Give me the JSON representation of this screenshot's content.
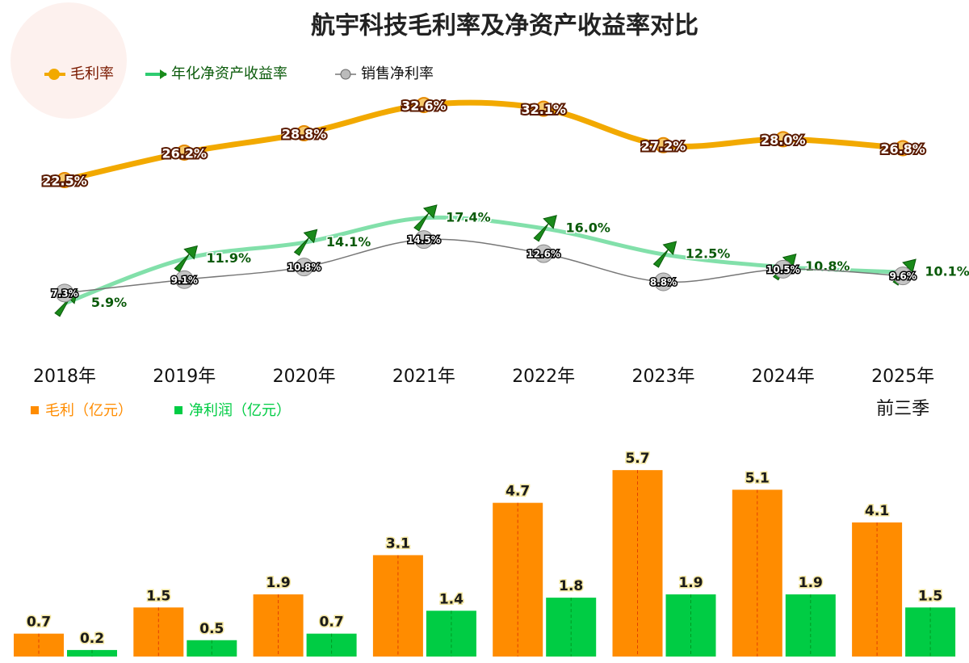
{
  "chart_data": [
    {
      "type": "line",
      "title": "航宇科技毛利率及净资产收益率对比",
      "categories": [
        "2018年",
        "2019年",
        "2020年",
        "2021年",
        "2022年",
        "2023年",
        "2024年",
        "2025年\n前三季"
      ],
      "series": [
        {
          "name": "毛利率",
          "color": "#f2a900",
          "marker": "circle",
          "values": [
            22.5,
            26.2,
            28.8,
            32.6,
            32.1,
            27.2,
            28.0,
            26.8
          ],
          "value_labels": [
            "22.5%",
            "26.2%",
            "28.8%",
            "32.6%",
            "32.1%",
            "27.2%",
            "28.0%",
            "26.8%"
          ]
        },
        {
          "name": "年化净资产收益率",
          "color": "#2ecc71",
          "marker": "arrow",
          "values": [
            5.9,
            11.9,
            14.1,
            17.4,
            16.0,
            12.5,
            10.8,
            10.1
          ],
          "value_labels": [
            "5.9%",
            "11.9%",
            "14.1%",
            "17.4%",
            "16.0%",
            "12.5%",
            "10.8%",
            "10.1%"
          ]
        },
        {
          "name": "销售净利率",
          "color": "#777777",
          "marker": "dot",
          "values": [
            7.3,
            9.1,
            10.8,
            14.5,
            12.6,
            8.8,
            10.5,
            9.6
          ],
          "value_labels": [
            "7.3%",
            "9.1%",
            "10.8%",
            "14.5%",
            "12.6%",
            "8.8%",
            "10.5%",
            "9.6%"
          ]
        }
      ]
    },
    {
      "type": "bar",
      "series": [
        {
          "name": "毛利（亿元）",
          "color": "#ff8c00",
          "values": [
            0.7,
            1.5,
            1.9,
            3.1,
            4.7,
            5.7,
            5.1,
            4.1
          ]
        },
        {
          "name": "净利润（亿元）",
          "color": "#00cc44",
          "values": [
            0.2,
            0.5,
            0.7,
            1.4,
            1.8,
            1.9,
            1.9,
            1.5
          ]
        }
      ]
    }
  ]
}
